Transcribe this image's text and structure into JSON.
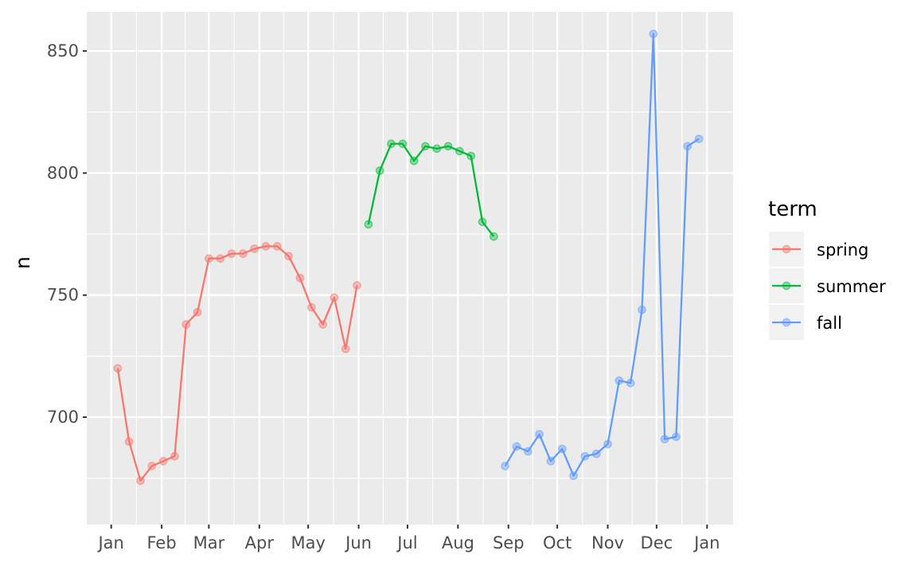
{
  "chart_data": {
    "type": "line",
    "title": "",
    "xlabel": "",
    "ylabel": "n",
    "ylim": [
      656,
      866
    ],
    "xlim": [
      "2011-12-17",
      "2013-01-17"
    ],
    "y_ticks": [
      700,
      750,
      800,
      850
    ],
    "y_tick_labels": [
      "700",
      "750",
      "800",
      "850"
    ],
    "x_ticks": [
      "2012-01-01",
      "2012-02-01",
      "2012-03-01",
      "2012-04-01",
      "2012-05-01",
      "2012-06-01",
      "2012-07-01",
      "2012-08-01",
      "2012-09-01",
      "2012-10-01",
      "2012-11-01",
      "2012-12-01",
      "2013-01-01"
    ],
    "x_tick_labels": [
      "Jan",
      "Feb",
      "Mar",
      "Apr",
      "May",
      "Jun",
      "Jul",
      "Aug",
      "Sep",
      "Oct",
      "Nov",
      "Dec",
      "Jan"
    ],
    "grid": true,
    "legend": {
      "title": "term",
      "position": "right"
    },
    "series": [
      {
        "name": "spring",
        "color": "#F8766D",
        "points": [
          [
            "2012-01-05",
            720
          ],
          [
            "2012-01-12",
            690
          ],
          [
            "2012-01-19",
            674
          ],
          [
            "2012-01-26",
            680
          ],
          [
            "2012-02-02",
            682
          ],
          [
            "2012-02-09",
            684
          ],
          [
            "2012-02-16",
            738
          ],
          [
            "2012-02-23",
            743
          ],
          [
            "2012-03-01",
            765
          ],
          [
            "2012-03-08",
            765
          ],
          [
            "2012-03-15",
            767
          ],
          [
            "2012-03-22",
            767
          ],
          [
            "2012-03-29",
            769
          ],
          [
            "2012-04-05",
            770
          ],
          [
            "2012-04-12",
            770
          ],
          [
            "2012-04-19",
            766
          ],
          [
            "2012-04-26",
            757
          ],
          [
            "2012-05-03",
            745
          ],
          [
            "2012-05-10",
            738
          ],
          [
            "2012-05-17",
            749
          ],
          [
            "2012-05-24",
            728
          ],
          [
            "2012-05-31",
            754
          ]
        ]
      },
      {
        "name": "summer",
        "color": "#00BA38",
        "points": [
          [
            "2012-06-07",
            779
          ],
          [
            "2012-06-14",
            801
          ],
          [
            "2012-06-21",
            812
          ],
          [
            "2012-06-28",
            812
          ],
          [
            "2012-07-05",
            805
          ],
          [
            "2012-07-12",
            811
          ],
          [
            "2012-07-19",
            810
          ],
          [
            "2012-07-26",
            811
          ],
          [
            "2012-08-02",
            809
          ],
          [
            "2012-08-09",
            807
          ],
          [
            "2012-08-16",
            780
          ],
          [
            "2012-08-23",
            774
          ]
        ]
      },
      {
        "name": "fall",
        "color": "#619CFF",
        "points": [
          [
            "2012-08-30",
            680
          ],
          [
            "2012-09-06",
            688
          ],
          [
            "2012-09-13",
            686
          ],
          [
            "2012-09-20",
            693
          ],
          [
            "2012-09-27",
            682
          ],
          [
            "2012-10-04",
            687
          ],
          [
            "2012-10-11",
            676
          ],
          [
            "2012-10-18",
            684
          ],
          [
            "2012-10-25",
            685
          ],
          [
            "2012-11-01",
            689
          ],
          [
            "2012-11-08",
            715
          ],
          [
            "2012-11-15",
            714
          ],
          [
            "2012-11-22",
            744
          ],
          [
            "2012-11-29",
            857
          ],
          [
            "2012-12-06",
            691
          ],
          [
            "2012-12-13",
            692
          ],
          [
            "2012-12-20",
            811
          ],
          [
            "2012-12-27",
            814
          ]
        ]
      }
    ]
  }
}
